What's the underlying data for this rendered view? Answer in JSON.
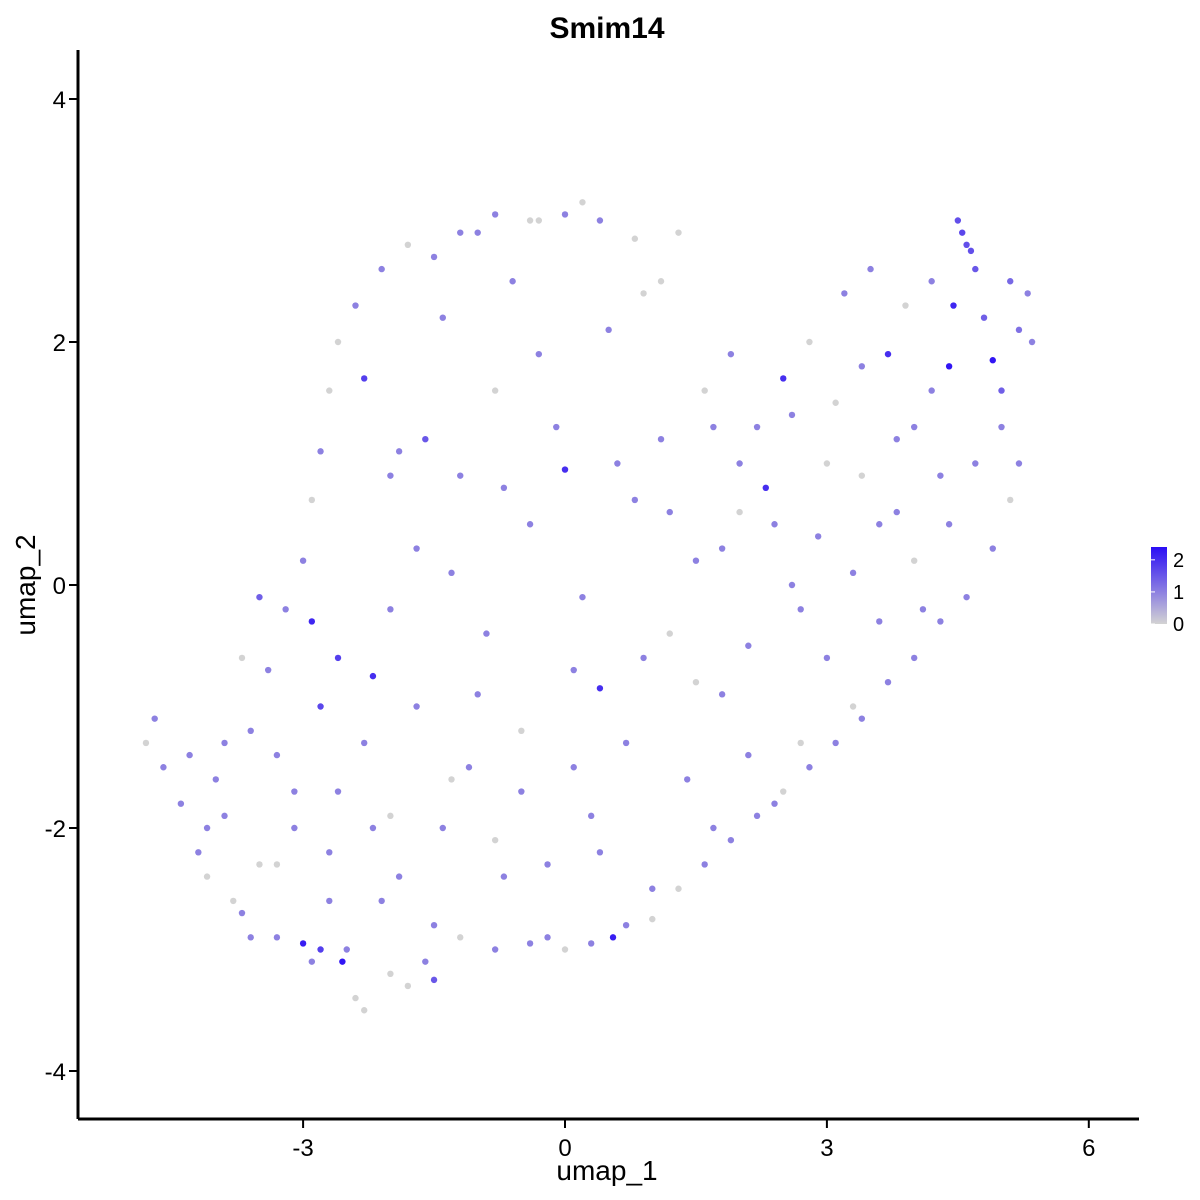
{
  "chart_data": {
    "type": "scatter",
    "title": "Smim14",
    "xlabel": "umap_1",
    "ylabel": "umap_2",
    "xlim": [
      -5.7,
      6.5
    ],
    "ylim": [
      -4.3,
      4.4
    ],
    "xticks": [
      -3,
      0,
      3,
      6
    ],
    "yticks": [
      -4,
      -2,
      0,
      2,
      4
    ],
    "xtick_labels": [
      "-3",
      "0",
      "3",
      "6"
    ],
    "ytick_labels": [
      "-4",
      "-2",
      "0",
      "2",
      "4"
    ],
    "grid": false,
    "legend": {
      "placement": "right",
      "type": "colorbar",
      "labels": [
        "2",
        "1",
        "0"
      ],
      "values": [
        2,
        1,
        0
      ],
      "color_low": "#d3d3d3",
      "color_high": "#2a0df5",
      "max": 2.4
    },
    "points": [
      {
        "x": -4.8,
        "y": -1.3,
        "v": 0
      },
      {
        "x": -4.7,
        "y": -1.1,
        "v": 1
      },
      {
        "x": -4.6,
        "y": -1.5,
        "v": 1
      },
      {
        "x": -4.4,
        "y": -1.8,
        "v": 1
      },
      {
        "x": -4.2,
        "y": -2.2,
        "v": 1
      },
      {
        "x": -4.0,
        "y": -1.6,
        "v": 1
      },
      {
        "x": -3.8,
        "y": -2.6,
        "v": 0
      },
      {
        "x": -3.6,
        "y": -2.9,
        "v": 1
      },
      {
        "x": -3.5,
        "y": -2.3,
        "v": 0
      },
      {
        "x": -3.3,
        "y": -1.4,
        "v": 1
      },
      {
        "x": -3.1,
        "y": -2.0,
        "v": 1
      },
      {
        "x": -3.0,
        "y": -2.95,
        "v": 2.2
      },
      {
        "x": -2.9,
        "y": -0.3,
        "v": 2.1
      },
      {
        "x": -2.8,
        "y": -1.0,
        "v": 1.7
      },
      {
        "x": -2.7,
        "y": -2.6,
        "v": 1
      },
      {
        "x": -2.6,
        "y": -1.7,
        "v": 1
      },
      {
        "x": -2.55,
        "y": -3.1,
        "v": 2.3
      },
      {
        "x": -2.4,
        "y": -3.4,
        "v": 0
      },
      {
        "x": -2.3,
        "y": -3.5,
        "v": 0
      },
      {
        "x": -2.2,
        "y": -0.75,
        "v": 2.0
      },
      {
        "x": -2.1,
        "y": -2.6,
        "v": 1
      },
      {
        "x": -2.0,
        "y": -1.9,
        "v": 0
      },
      {
        "x": -1.9,
        "y": 1.1,
        "v": 1
      },
      {
        "x": -1.8,
        "y": -3.3,
        "v": 0
      },
      {
        "x": -1.7,
        "y": 0.3,
        "v": 1
      },
      {
        "x": -1.5,
        "y": -2.8,
        "v": 1
      },
      {
        "x": -1.4,
        "y": 2.2,
        "v": 1
      },
      {
        "x": -1.3,
        "y": -1.6,
        "v": 0
      },
      {
        "x": -1.2,
        "y": 0.9,
        "v": 1
      },
      {
        "x": -1.0,
        "y": 2.9,
        "v": 1
      },
      {
        "x": -0.9,
        "y": -0.4,
        "v": 1
      },
      {
        "x": -0.8,
        "y": 1.6,
        "v": 0
      },
      {
        "x": -0.7,
        "y": -2.4,
        "v": 1
      },
      {
        "x": -0.6,
        "y": 2.5,
        "v": 1
      },
      {
        "x": -0.5,
        "y": -1.2,
        "v": 0
      },
      {
        "x": -0.4,
        "y": 0.5,
        "v": 1
      },
      {
        "x": -0.3,
        "y": 3.0,
        "v": 0
      },
      {
        "x": -0.2,
        "y": -2.9,
        "v": 1
      },
      {
        "x": -0.1,
        "y": 1.3,
        "v": 1
      },
      {
        "x": 0.0,
        "y": 0.95,
        "v": 2.0
      },
      {
        "x": 0.1,
        "y": -0.7,
        "v": 1
      },
      {
        "x": 0.2,
        "y": 3.15,
        "v": 0
      },
      {
        "x": 0.3,
        "y": -1.9,
        "v": 1
      },
      {
        "x": 0.4,
        "y": -0.85,
        "v": 2.0
      },
      {
        "x": 0.5,
        "y": 2.1,
        "v": 1
      },
      {
        "x": 0.55,
        "y": -2.9,
        "v": 2.2
      },
      {
        "x": 0.7,
        "y": -1.3,
        "v": 1
      },
      {
        "x": 0.8,
        "y": 0.7,
        "v": 1
      },
      {
        "x": 0.9,
        "y": 2.4,
        "v": 0
      },
      {
        "x": 1.0,
        "y": -2.5,
        "v": 1
      },
      {
        "x": 1.1,
        "y": 1.2,
        "v": 1
      },
      {
        "x": 1.2,
        "y": -0.4,
        "v": 0
      },
      {
        "x": 1.3,
        "y": 2.9,
        "v": 0
      },
      {
        "x": 1.4,
        "y": -1.6,
        "v": 1
      },
      {
        "x": 1.5,
        "y": 0.2,
        "v": 1
      },
      {
        "x": 1.6,
        "y": 1.6,
        "v": 0
      },
      {
        "x": 1.7,
        "y": -2.0,
        "v": 1
      },
      {
        "x": 1.8,
        "y": -0.9,
        "v": 1
      },
      {
        "x": 1.9,
        "y": 1.9,
        "v": 1
      },
      {
        "x": 2.0,
        "y": 0.6,
        "v": 0
      },
      {
        "x": 2.1,
        "y": -1.4,
        "v": 1
      },
      {
        "x": 2.2,
        "y": 1.3,
        "v": 1
      },
      {
        "x": 2.3,
        "y": 0.8,
        "v": 2.0
      },
      {
        "x": 2.4,
        "y": -1.8,
        "v": 1
      },
      {
        "x": 2.5,
        "y": 1.7,
        "v": 2.0
      },
      {
        "x": 2.6,
        "y": 0.0,
        "v": 1
      },
      {
        "x": 2.7,
        "y": -1.3,
        "v": 0
      },
      {
        "x": 2.8,
        "y": 2.0,
        "v": 0
      },
      {
        "x": 2.9,
        "y": 0.4,
        "v": 1
      },
      {
        "x": 3.0,
        "y": -0.6,
        "v": 1
      },
      {
        "x": 3.1,
        "y": 1.5,
        "v": 0
      },
      {
        "x": 3.2,
        "y": 2.4,
        "v": 1
      },
      {
        "x": 3.3,
        "y": -1.0,
        "v": 0
      },
      {
        "x": 3.4,
        "y": 0.9,
        "v": 0
      },
      {
        "x": 3.5,
        "y": 2.6,
        "v": 1
      },
      {
        "x": 3.6,
        "y": -0.3,
        "v": 1
      },
      {
        "x": 3.7,
        "y": 1.9,
        "v": 2.0
      },
      {
        "x": 3.8,
        "y": 0.6,
        "v": 1
      },
      {
        "x": 3.9,
        "y": 2.3,
        "v": 0
      },
      {
        "x": 4.0,
        "y": 1.3,
        "v": 1
      },
      {
        "x": 4.1,
        "y": -0.2,
        "v": 1
      },
      {
        "x": 4.2,
        "y": 2.5,
        "v": 1
      },
      {
        "x": 4.3,
        "y": 0.9,
        "v": 1
      },
      {
        "x": 4.4,
        "y": 1.8,
        "v": 2.3
      },
      {
        "x": 4.45,
        "y": 2.3,
        "v": 2.1
      },
      {
        "x": 4.5,
        "y": 3.0,
        "v": 1.6
      },
      {
        "x": 4.6,
        "y": 2.8,
        "v": 1.6
      },
      {
        "x": 4.7,
        "y": 2.6,
        "v": 1.5
      },
      {
        "x": 4.8,
        "y": 2.2,
        "v": 1.4
      },
      {
        "x": 4.9,
        "y": 1.85,
        "v": 2.3
      },
      {
        "x": 5.0,
        "y": 1.6,
        "v": 1.4
      },
      {
        "x": 5.1,
        "y": 2.5,
        "v": 1.3
      },
      {
        "x": 5.2,
        "y": 2.1,
        "v": 1.2
      },
      {
        "x": 5.3,
        "y": 2.4,
        "v": 1
      },
      {
        "x": 5.35,
        "y": 2.0,
        "v": 1
      },
      {
        "x": 5.2,
        "y": 1.0,
        "v": 1
      },
      {
        "x": 5.1,
        "y": 0.7,
        "v": 0
      },
      {
        "x": 4.9,
        "y": 0.3,
        "v": 1
      },
      {
        "x": 4.6,
        "y": -0.1,
        "v": 1
      },
      {
        "x": 4.3,
        "y": -0.3,
        "v": 1
      },
      {
        "x": 4.0,
        "y": -0.6,
        "v": 1
      },
      {
        "x": 3.7,
        "y": -0.8,
        "v": 1
      },
      {
        "x": 3.4,
        "y": -1.1,
        "v": 1
      },
      {
        "x": 3.1,
        "y": -1.3,
        "v": 1
      },
      {
        "x": 2.8,
        "y": -1.5,
        "v": 1
      },
      {
        "x": 2.5,
        "y": -1.7,
        "v": 0
      },
      {
        "x": 2.2,
        "y": -1.9,
        "v": 1
      },
      {
        "x": 1.9,
        "y": -2.1,
        "v": 1
      },
      {
        "x": 1.6,
        "y": -2.3,
        "v": 1
      },
      {
        "x": 1.3,
        "y": -2.5,
        "v": 0
      },
      {
        "x": 1.0,
        "y": -2.75,
        "v": 0
      },
      {
        "x": 0.7,
        "y": -2.8,
        "v": 1
      },
      {
        "x": 0.3,
        "y": -2.95,
        "v": 1
      },
      {
        "x": 0.0,
        "y": -3.0,
        "v": 0
      },
      {
        "x": -0.4,
        "y": -2.95,
        "v": 1
      },
      {
        "x": -0.8,
        "y": -3.0,
        "v": 1
      },
      {
        "x": -1.2,
        "y": -2.9,
        "v": 0
      },
      {
        "x": -1.6,
        "y": -3.1,
        "v": 1
      },
      {
        "x": -2.0,
        "y": -3.2,
        "v": 0
      },
      {
        "x": -2.5,
        "y": -3.0,
        "v": 1
      },
      {
        "x": -2.9,
        "y": -3.1,
        "v": 1
      },
      {
        "x": -3.3,
        "y": -2.9,
        "v": 1
      },
      {
        "x": -3.7,
        "y": -2.7,
        "v": 1
      },
      {
        "x": -4.1,
        "y": -2.4,
        "v": 0
      },
      {
        "x": -3.9,
        "y": -1.9,
        "v": 1
      },
      {
        "x": -3.6,
        "y": -1.2,
        "v": 1
      },
      {
        "x": -3.4,
        "y": -0.7,
        "v": 1
      },
      {
        "x": -3.2,
        "y": -0.2,
        "v": 1
      },
      {
        "x": -3.0,
        "y": 0.2,
        "v": 1
      },
      {
        "x": -2.9,
        "y": 0.7,
        "v": 0
      },
      {
        "x": -2.8,
        "y": 1.1,
        "v": 1
      },
      {
        "x": -2.7,
        "y": 1.6,
        "v": 0
      },
      {
        "x": -2.6,
        "y": 2.0,
        "v": 0
      },
      {
        "x": -2.4,
        "y": 2.3,
        "v": 1
      },
      {
        "x": -2.1,
        "y": 2.6,
        "v": 1
      },
      {
        "x": -1.8,
        "y": 2.8,
        "v": 0
      },
      {
        "x": -1.5,
        "y": 2.7,
        "v": 1
      },
      {
        "x": -1.2,
        "y": 2.9,
        "v": 1
      },
      {
        "x": -0.8,
        "y": 3.05,
        "v": 1
      },
      {
        "x": -0.4,
        "y": 3.0,
        "v": 0
      },
      {
        "x": 0.0,
        "y": 3.05,
        "v": 1
      },
      {
        "x": 0.4,
        "y": 3.0,
        "v": 1
      },
      {
        "x": 0.8,
        "y": 2.85,
        "v": 0
      },
      {
        "x": 1.1,
        "y": 2.5,
        "v": 0
      },
      {
        "x": -2.3,
        "y": 1.7,
        "v": 1.8
      },
      {
        "x": -2.0,
        "y": 0.9,
        "v": 1
      },
      {
        "x": -1.6,
        "y": 1.2,
        "v": 1.5
      },
      {
        "x": -1.3,
        "y": 0.1,
        "v": 1
      },
      {
        "x": -1.0,
        "y": -0.9,
        "v": 1
      },
      {
        "x": -0.7,
        "y": 0.8,
        "v": 1
      },
      {
        "x": -0.3,
        "y": 1.9,
        "v": 1
      },
      {
        "x": 0.2,
        "y": -0.1,
        "v": 1
      },
      {
        "x": 0.6,
        "y": 1.0,
        "v": 1
      },
      {
        "x": 0.9,
        "y": -0.6,
        "v": 1
      },
      {
        "x": 1.2,
        "y": 0.6,
        "v": 1
      },
      {
        "x": 1.5,
        "y": -0.8,
        "v": 0
      },
      {
        "x": 1.8,
        "y": 0.3,
        "v": 1
      },
      {
        "x": 2.1,
        "y": -0.5,
        "v": 1
      },
      {
        "x": 2.4,
        "y": 0.5,
        "v": 1
      },
      {
        "x": 2.7,
        "y": -0.2,
        "v": 1
      },
      {
        "x": -2.6,
        "y": -0.6,
        "v": 1.8
      },
      {
        "x": -2.3,
        "y": -1.3,
        "v": 1
      },
      {
        "x": -2.0,
        "y": -0.2,
        "v": 1
      },
      {
        "x": -1.7,
        "y": -1.0,
        "v": 1
      },
      {
        "x": -1.4,
        "y": -2.0,
        "v": 1
      },
      {
        "x": -1.1,
        "y": -1.5,
        "v": 1
      },
      {
        "x": -0.8,
        "y": -2.1,
        "v": 0
      },
      {
        "x": -0.5,
        "y": -1.7,
        "v": 1
      },
      {
        "x": -0.2,
        "y": -2.3,
        "v": 1
      },
      {
        "x": 0.1,
        "y": -1.5,
        "v": 1
      },
      {
        "x": 0.4,
        "y": -2.2,
        "v": 1
      },
      {
        "x": -3.5,
        "y": -0.1,
        "v": 1.4
      },
      {
        "x": -3.7,
        "y": -0.6,
        "v": 0
      },
      {
        "x": -3.9,
        "y": -1.3,
        "v": 1
      },
      {
        "x": -4.3,
        "y": -1.4,
        "v": 1
      },
      {
        "x": -4.1,
        "y": -2.0,
        "v": 1
      },
      {
        "x": -3.3,
        "y": -2.3,
        "v": 0
      },
      {
        "x": -2.7,
        "y": -2.2,
        "v": 1
      },
      {
        "x": -2.2,
        "y": -2.0,
        "v": 1
      },
      {
        "x": -1.9,
        "y": -2.4,
        "v": 1
      },
      {
        "x": -1.5,
        "y": -3.25,
        "v": 1.5
      },
      {
        "x": -2.8,
        "y": -3.0,
        "v": 1.8
      },
      {
        "x": -3.1,
        "y": -1.7,
        "v": 1
      },
      {
        "x": 3.3,
        "y": 0.1,
        "v": 1
      },
      {
        "x": 3.6,
        "y": 0.5,
        "v": 1
      },
      {
        "x": 4.0,
        "y": 0.2,
        "v": 0
      },
      {
        "x": 4.4,
        "y": 0.5,
        "v": 1
      },
      {
        "x": 4.7,
        "y": 1.0,
        "v": 1
      },
      {
        "x": 5.0,
        "y": 1.3,
        "v": 1
      },
      {
        "x": 4.2,
        "y": 1.6,
        "v": 1
      },
      {
        "x": 3.8,
        "y": 1.2,
        "v": 1
      },
      {
        "x": 3.4,
        "y": 1.8,
        "v": 1
      },
      {
        "x": 3.0,
        "y": 1.0,
        "v": 0
      },
      {
        "x": 2.6,
        "y": 1.4,
        "v": 1
      },
      {
        "x": 2.0,
        "y": 1.0,
        "v": 1
      },
      {
        "x": 1.7,
        "y": 1.3,
        "v": 1
      },
      {
        "x": 4.55,
        "y": 2.9,
        "v": 1.7
      },
      {
        "x": 4.65,
        "y": 2.75,
        "v": 1.6
      }
    ]
  }
}
